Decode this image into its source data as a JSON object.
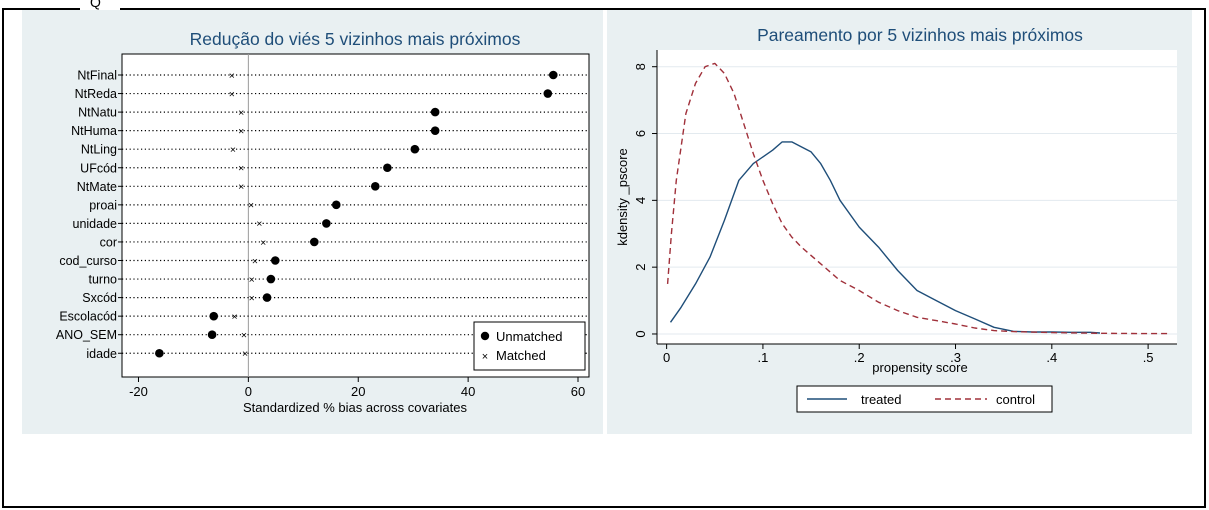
{
  "document": {
    "header_fragment": "Q"
  },
  "chart_data": [
    {
      "type": "scatter",
      "title": "Redução do viés 5 vizinhos mais próximos",
      "xlabel": "Standardized % bias across covariates",
      "ylabel": "",
      "xlim": [
        -23,
        62
      ],
      "xticks": [
        -20,
        0,
        20,
        40,
        60
      ],
      "grid": false,
      "legend_position": "bottom-right",
      "categories": [
        "NtFinal",
        "NtReda",
        "NtNatu",
        "NtHuma",
        "NtLing",
        "UFcód",
        "NtMate",
        "proai",
        "unidade",
        "cor",
        "cod_curso",
        "turno",
        "Sxcód",
        "Escolacód",
        "ANO_SEM",
        "idade"
      ],
      "series": [
        {
          "name": "Unmatched",
          "marker": "dot",
          "values": [
            55.5,
            54.5,
            34.0,
            34.0,
            30.3,
            25.3,
            23.1,
            16.0,
            14.2,
            12.0,
            4.9,
            4.1,
            3.4,
            -6.3,
            -6.6,
            -16.2
          ]
        },
        {
          "name": "Matched",
          "marker": "cross",
          "values": [
            -3.0,
            -3.0,
            -1.3,
            -1.3,
            -2.8,
            -1.3,
            -1.3,
            0.5,
            2.0,
            2.7,
            1.2,
            0.6,
            0.6,
            -2.5,
            -0.8,
            -0.6
          ]
        }
      ]
    },
    {
      "type": "line",
      "title": "Pareamento por 5 vizinhos mais próximos",
      "xlabel": "propensity score",
      "ylabel": "kdensity _pscore",
      "xlim": [
        -0.01,
        0.53
      ],
      "ylim": [
        -0.3,
        8.5
      ],
      "xticks": [
        0,
        0.1,
        0.2,
        0.3,
        0.4,
        0.5
      ],
      "xtick_labels": [
        "0",
        ".1",
        ".2",
        ".3",
        ".4",
        ".5"
      ],
      "yticks": [
        0,
        2,
        4,
        6,
        8
      ],
      "grid": true,
      "legend_position": "bottom",
      "series": [
        {
          "name": "treated",
          "style": "solid",
          "color": "#1f4e79",
          "x": [
            0.004,
            0.015,
            0.03,
            0.045,
            0.06,
            0.075,
            0.09,
            0.1,
            0.11,
            0.12,
            0.13,
            0.14,
            0.15,
            0.16,
            0.17,
            0.18,
            0.2,
            0.22,
            0.24,
            0.26,
            0.28,
            0.3,
            0.32,
            0.34,
            0.36,
            0.38,
            0.4,
            0.42,
            0.44,
            0.45
          ],
          "y": [
            0.35,
            0.8,
            1.5,
            2.3,
            3.4,
            4.6,
            5.1,
            5.3,
            5.5,
            5.75,
            5.75,
            5.6,
            5.45,
            5.1,
            4.6,
            4.0,
            3.2,
            2.6,
            1.9,
            1.3,
            1.0,
            0.7,
            0.45,
            0.2,
            0.08,
            0.06,
            0.06,
            0.05,
            0.05,
            0.03
          ]
        },
        {
          "name": "control",
          "style": "dashed",
          "color": "#a0303a",
          "x": [
            0.001,
            0.005,
            0.01,
            0.02,
            0.03,
            0.04,
            0.05,
            0.06,
            0.07,
            0.08,
            0.09,
            0.1,
            0.11,
            0.12,
            0.13,
            0.14,
            0.16,
            0.18,
            0.2,
            0.22,
            0.24,
            0.26,
            0.28,
            0.3,
            0.32,
            0.34,
            0.36,
            0.4,
            0.45,
            0.5,
            0.52
          ],
          "y": [
            1.5,
            3.0,
            4.6,
            6.6,
            7.5,
            8.0,
            8.1,
            7.8,
            7.2,
            6.3,
            5.4,
            4.6,
            3.9,
            3.3,
            2.9,
            2.6,
            2.1,
            1.6,
            1.3,
            0.95,
            0.7,
            0.5,
            0.4,
            0.3,
            0.18,
            0.1,
            0.07,
            0.04,
            0.02,
            0.01,
            0.01
          ]
        }
      ]
    }
  ]
}
